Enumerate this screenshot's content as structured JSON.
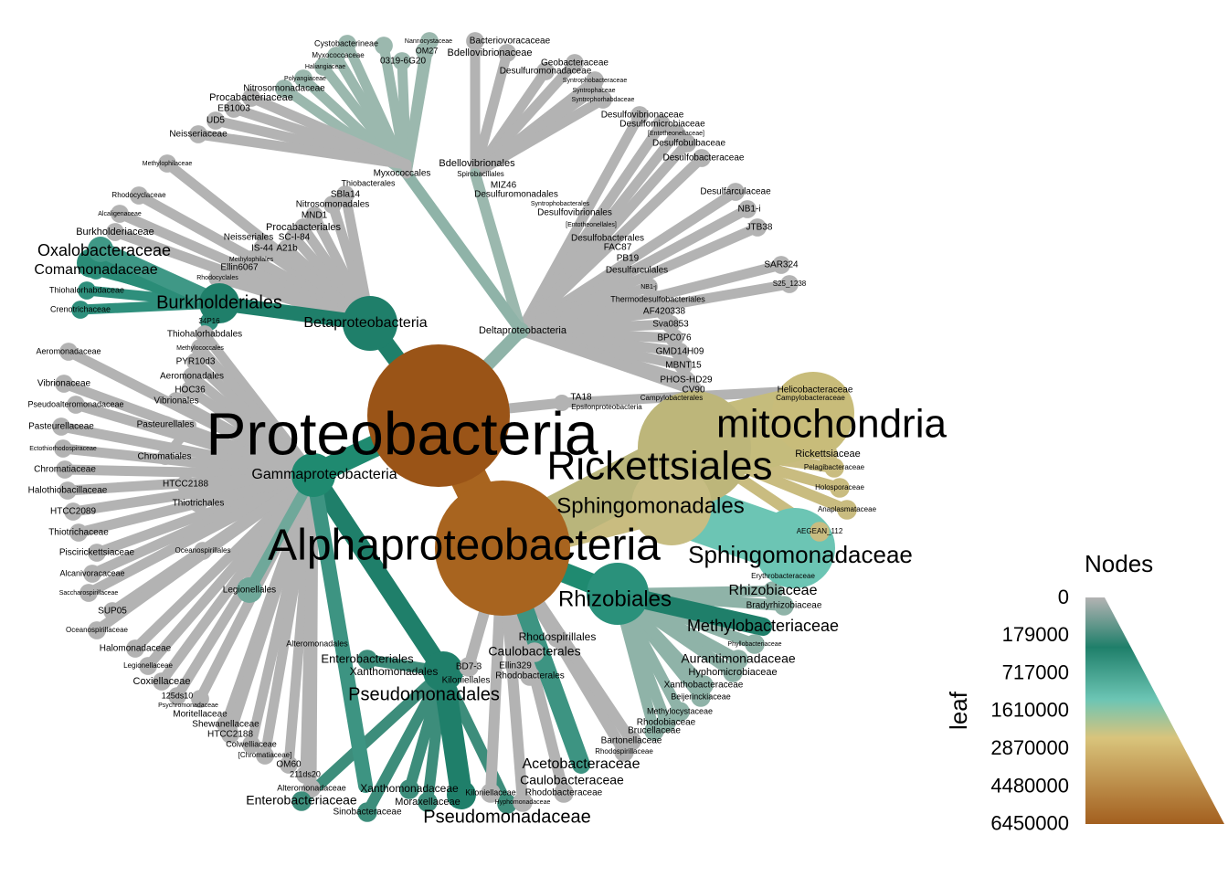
{
  "legend": {
    "title": "Nodes",
    "axis_label": "leaf",
    "ticks": [
      "0",
      "179000",
      "717000",
      "1610000",
      "2870000",
      "4480000",
      "6450000"
    ],
    "colors": [
      "#b3b3b3",
      "#1f7f6a",
      "#6cc5b4",
      "#d9c47c",
      "#a35f1f"
    ]
  },
  "tree": {
    "root": {
      "name": "Proteobacteria",
      "color": "#9a5417"
    },
    "classes": [
      {
        "name": "Alphaproteobacteria",
        "color": "#a8641f"
      },
      {
        "name": "Gammaproteobacteria",
        "color": "#1f8a70"
      },
      {
        "name": "Betaproteobacteria",
        "color": "#1f7f6a"
      },
      {
        "name": "Deltaproteobacteria",
        "color": "#8fb3a8"
      },
      {
        "name": "Epsilonproteobacteria",
        "color": "#b3b3b3"
      }
    ],
    "labels": [
      {
        "t": "Proteobacteria",
        "s": 66
      },
      {
        "t": "Alphaproteobacteria",
        "s": 48
      },
      {
        "t": "mitochondria",
        "s": 44
      },
      {
        "t": "Rickettsiales",
        "s": 44
      },
      {
        "t": "Sphingomonadales",
        "s": 24
      },
      {
        "t": "Sphingomonadaceae",
        "s": 26
      },
      {
        "t": "Rhizobiales",
        "s": 24
      },
      {
        "t": "Rhizobiaceae",
        "s": 16
      },
      {
        "t": "Bradyrhizobiaceae",
        "s": 10
      },
      {
        "t": "Methylobacteriaceae",
        "s": 18
      },
      {
        "t": "Phyllobacteriaceae",
        "s": 7
      },
      {
        "t": "Aurantimonadaceae",
        "s": 14
      },
      {
        "t": "Hyphomicrobiaceae",
        "s": 11
      },
      {
        "t": "Xanthobacteraceae",
        "s": 10
      },
      {
        "t": "Beijerinckiaceae",
        "s": 9
      },
      {
        "t": "Methylocystaceae",
        "s": 9
      },
      {
        "t": "Rhodobiaceae",
        "s": 10
      },
      {
        "t": "Brucellaceae",
        "s": 10
      },
      {
        "t": "Bartonellaceae",
        "s": 10
      },
      {
        "t": "Rhodospirillaceae",
        "s": 8
      },
      {
        "t": "Rhodobacteraceae",
        "s": 10
      },
      {
        "t": "Hyphomonadaceae",
        "s": 7
      },
      {
        "t": "Caulobacteraceae",
        "s": 14
      },
      {
        "t": "Acetobacteraceae",
        "s": 16
      },
      {
        "t": "Kiloniellaceae",
        "s": 9
      },
      {
        "t": "Rhodospirillales",
        "s": 12
      },
      {
        "t": "Caulobacterales",
        "s": 14
      },
      {
        "t": "Ellin329",
        "s": 10
      },
      {
        "t": "Rhodobacterales",
        "s": 10
      },
      {
        "t": "BD7-3",
        "s": 10
      },
      {
        "t": "Kiloniellales",
        "s": 10
      },
      {
        "t": "Rickettsiaceae",
        "s": 11
      },
      {
        "t": "Pelagibacteraceae",
        "s": 8
      },
      {
        "t": "Holosporaceae",
        "s": 8
      },
      {
        "t": "Anaplasmataceae",
        "s": 8
      },
      {
        "t": "AEGEAN_112",
        "s": 8
      },
      {
        "t": "Erythrobacteraceae",
        "s": 8
      },
      {
        "t": "Helicobacteraceae",
        "s": 10
      },
      {
        "t": "Campylobacteraceae",
        "s": 8
      },
      {
        "t": "Campylobacterales",
        "s": 8
      },
      {
        "t": "TA18",
        "s": 10
      },
      {
        "t": "Epsilonproteobacteria",
        "s": 8
      },
      {
        "t": "Gammaproteobacteria",
        "s": 16
      },
      {
        "t": "Pseudomonadales",
        "s": 20
      },
      {
        "t": "Pseudomonadaceae",
        "s": 20
      },
      {
        "t": "Moraxellaceae",
        "s": 11
      },
      {
        "t": "Xanthomonadaceae",
        "s": 12
      },
      {
        "t": "Xanthomonadales",
        "s": 12
      },
      {
        "t": "Enterobacteriales",
        "s": 13
      },
      {
        "t": "Enterobacteriaceae",
        "s": 14
      },
      {
        "t": "Sinobacteraceae",
        "s": 10
      },
      {
        "t": "Alteromonadaceae",
        "s": 9
      },
      {
        "t": "Alteromonadales",
        "s": 9
      },
      {
        "t": "211ds20",
        "s": 9
      },
      {
        "t": "OM60",
        "s": 10
      },
      {
        "t": "[Chromatiaceae]",
        "s": 8
      },
      {
        "t": "Colwelliaceae",
        "s": 9
      },
      {
        "t": "HTCC2188",
        "s": 10
      },
      {
        "t": "Shewanellaceae",
        "s": 10
      },
      {
        "t": "Moritellaceae",
        "s": 10
      },
      {
        "t": "Psychromonadaceae",
        "s": 7
      },
      {
        "t": "125ds10",
        "s": 9
      },
      {
        "t": "Coxiellaceae",
        "s": 11
      },
      {
        "t": "Legionellaceae",
        "s": 8
      },
      {
        "t": "Halomonadaceae",
        "s": 10
      },
      {
        "t": "Oceanospirillaceae",
        "s": 8
      },
      {
        "t": "SUP05",
        "s": 10
      },
      {
        "t": "Saccharospirillaceae",
        "s": 7
      },
      {
        "t": "Alcanivoracaceae",
        "s": 9
      },
      {
        "t": "Piscirickettsiaceae",
        "s": 10
      },
      {
        "t": "Thiotrichaceae",
        "s": 10
      },
      {
        "t": "HTCC2089",
        "s": 10
      },
      {
        "t": "Halothiobacillaceae",
        "s": 10
      },
      {
        "t": "Chromatiaceae",
        "s": 10
      },
      {
        "t": "Ectothiorhodospiraceae",
        "s": 7
      },
      {
        "t": "Pasteurellaceae",
        "s": 10
      },
      {
        "t": "Pseudoalteromonadaceae",
        "s": 9
      },
      {
        "t": "Vibrionaceae",
        "s": 10
      },
      {
        "t": "Aeromonadaceae",
        "s": 9
      },
      {
        "t": "Legionellales",
        "s": 10
      },
      {
        "t": "Oceanospirillales",
        "s": 8
      },
      {
        "t": "Thiotrichales",
        "s": 10
      },
      {
        "t": "HTCC2188",
        "s": 10
      },
      {
        "t": "Chromatiales",
        "s": 10
      },
      {
        "t": "Pasteurellales",
        "s": 10
      },
      {
        "t": "Vibrionales",
        "s": 10
      },
      {
        "t": "HOC36",
        "s": 10
      },
      {
        "t": "Aeromonadales",
        "s": 10
      },
      {
        "t": "PYR10d3",
        "s": 10
      },
      {
        "t": "Methylococcales",
        "s": 7
      },
      {
        "t": "Thiohalorhabdales",
        "s": 10
      },
      {
        "t": "34P16",
        "s": 8
      },
      {
        "t": "Crenotrichaceae",
        "s": 9
      },
      {
        "t": "Thiohalorhabdaceae",
        "s": 9
      },
      {
        "t": "Comamonadaceae",
        "s": 16
      },
      {
        "t": "Oxalobacteraceae",
        "s": 18
      },
      {
        "t": "Burkholderiaceae",
        "s": 11
      },
      {
        "t": "Alcaligenaceae",
        "s": 7
      },
      {
        "t": "Rhodocyclaceae",
        "s": 8
      },
      {
        "t": "Methylophilaceae",
        "s": 7
      },
      {
        "t": "Neisseriaceae",
        "s": 10
      },
      {
        "t": "UD5",
        "s": 10
      },
      {
        "t": "EB1003",
        "s": 10
      },
      {
        "t": "Procabacteriaceae",
        "s": 11
      },
      {
        "t": "Nitrosomonadaceae",
        "s": 10
      },
      {
        "t": "Burkholderiales",
        "s": 20
      },
      {
        "t": "Betaproteobacteria",
        "s": 16
      },
      {
        "t": "Rhodocyclales",
        "s": 7
      },
      {
        "t": "Ellin6067",
        "s": 10
      },
      {
        "t": "Methylophilales",
        "s": 7
      },
      {
        "t": "IS-44",
        "s": 10
      },
      {
        "t": "A21b",
        "s": 10
      },
      {
        "t": "Neisseriales",
        "s": 10
      },
      {
        "t": "SC-I-84",
        "s": 10
      },
      {
        "t": "Procabacteriales",
        "s": 11
      },
      {
        "t": "MND1",
        "s": 10
      },
      {
        "t": "Nitrosomonadales",
        "s": 10
      },
      {
        "t": "SBla14",
        "s": 10
      },
      {
        "t": "Thiobacterales",
        "s": 9
      },
      {
        "t": "Myxococcales",
        "s": 10
      },
      {
        "t": "Bdellovibrionales",
        "s": 11
      },
      {
        "t": "Spirobacillales",
        "s": 8
      },
      {
        "t": "MIZ46",
        "s": 10
      },
      {
        "t": "Desulfuromonadales",
        "s": 10
      },
      {
        "t": "Syntrophobacterales",
        "s": 7
      },
      {
        "t": "Desulfovibrionales",
        "s": 10
      },
      {
        "t": "[Entotheonellales]",
        "s": 7
      },
      {
        "t": "Desulfobacterales",
        "s": 10
      },
      {
        "t": "FAC87",
        "s": 10
      },
      {
        "t": "PB19",
        "s": 10
      },
      {
        "t": "Desulfarculales",
        "s": 10
      },
      {
        "t": "NB1-j",
        "s": 7
      },
      {
        "t": "Thermodesulfobacteriales",
        "s": 9
      },
      {
        "t": "AF420338",
        "s": 10
      },
      {
        "t": "Sva0853",
        "s": 10
      },
      {
        "t": "BPC076",
        "s": 10
      },
      {
        "t": "GMD14H09",
        "s": 10
      },
      {
        "t": "MBNT15",
        "s": 10
      },
      {
        "t": "PHOS-HD29",
        "s": 10
      },
      {
        "t": "CV90",
        "s": 10
      },
      {
        "t": "Deltaproteobacteria",
        "s": 11
      },
      {
        "t": "Cystobacterineae",
        "s": 9
      },
      {
        "t": "Myxococcaceae",
        "s": 8
      },
      {
        "t": "Haliangiaceae",
        "s": 7
      },
      {
        "t": "Polyangiaceae",
        "s": 7
      },
      {
        "t": "Nannocystaceae",
        "s": 7
      },
      {
        "t": "OM27",
        "s": 9
      },
      {
        "t": "0319-6G20",
        "s": 10
      },
      {
        "t": "Bdellovibrionaceae",
        "s": 11
      },
      {
        "t": "Bacteriovoracaceae",
        "s": 10
      },
      {
        "t": "Desulfuromonadaceae",
        "s": 10
      },
      {
        "t": "Geobacteraceae",
        "s": 10
      },
      {
        "t": "Syntrophobacteraceae",
        "s": 7
      },
      {
        "t": "Syntrophaceae",
        "s": 7
      },
      {
        "t": "Syntrophorhabdaceae",
        "s": 7
      },
      {
        "t": "Desulfovibrionaceae",
        "s": 10
      },
      {
        "t": "Desulfomicrobiaceae",
        "s": 10
      },
      {
        "t": "[Entotheonellaceae]",
        "s": 7
      },
      {
        "t": "Desulfobulbaceae",
        "s": 10
      },
      {
        "t": "Desulfobacteraceae",
        "s": 10
      },
      {
        "t": "Desulfarculaceae",
        "s": 10
      },
      {
        "t": "NB1-i",
        "s": 10
      },
      {
        "t": "JTB38",
        "s": 10
      },
      {
        "t": "SAR324",
        "s": 10
      },
      {
        "t": "S25_1238",
        "s": 8
      }
    ]
  }
}
